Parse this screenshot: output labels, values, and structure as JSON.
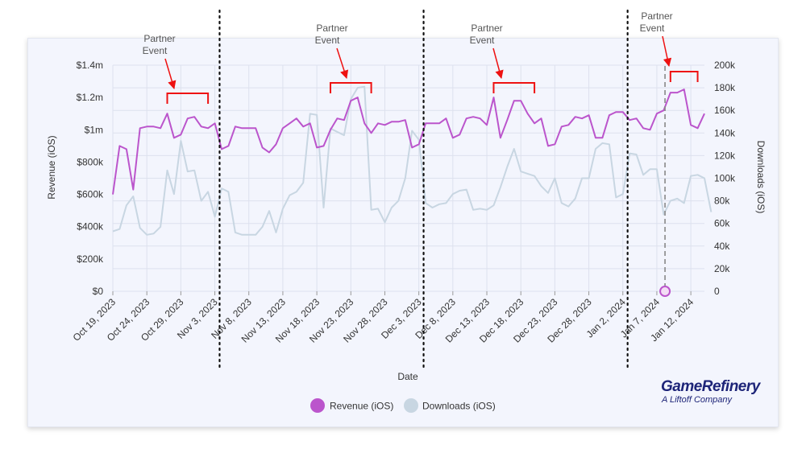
{
  "brand": {
    "name": "GameRefinery",
    "tagline": "A Liftoff Company"
  },
  "colors": {
    "revenue": "#bb55cc",
    "downloads": "#c8d6e2",
    "bracket": "#ee1111",
    "grid": "#dde1ee",
    "divider": "#111111"
  },
  "chart_data": {
    "type": "line",
    "xlabel": "Date",
    "ylabel": "Revenue (iOS)",
    "y2label": "Downloads (iOS)",
    "ylim": [
      0,
      1400000
    ],
    "y2lim": [
      0,
      200000
    ],
    "yticks": [
      "$0",
      "$200k",
      "$400k",
      "$600k",
      "$800k",
      "$1m",
      "$1.2m",
      "$1.4m"
    ],
    "y2ticks": [
      "0",
      "20k",
      "40k",
      "60k",
      "80k",
      "100k",
      "120k",
      "140k",
      "160k",
      "180k",
      "200k"
    ],
    "start_date": "2023-10-19",
    "xticks": [
      "Oct 19, 2023",
      "Oct 24, 2023",
      "Oct 29, 2023",
      "Nov 3, 2023",
      "Nov 8, 2023",
      "Nov 13, 2023",
      "Nov 18, 2023",
      "Nov 23, 2023",
      "Nov 28, 2023",
      "Dec 3, 2023",
      "Dec 8, 2023",
      "Dec 13, 2023",
      "Dec 18, 2023",
      "Dec 23, 2023",
      "Dec 28, 2023",
      "Jan 2, 2024",
      "Jan 7, 2024",
      "Jan 12, 2024"
    ],
    "grid": true,
    "legend": "bottom",
    "series": [
      {
        "name": "Revenue (iOS)",
        "axis": "left",
        "values": [
          600000,
          900000,
          880000,
          630000,
          1010000,
          1020000,
          1020000,
          1010000,
          1100000,
          950000,
          970000,
          1070000,
          1080000,
          1020000,
          1010000,
          1040000,
          880000,
          900000,
          1020000,
          1010000,
          1010000,
          1010000,
          890000,
          860000,
          910000,
          1010000,
          1040000,
          1070000,
          1020000,
          1040000,
          890000,
          900000,
          1000000,
          1070000,
          1060000,
          1180000,
          1200000,
          1040000,
          980000,
          1040000,
          1030000,
          1050000,
          1050000,
          1060000,
          890000,
          910000,
          1040000,
          1040000,
          1040000,
          1070000,
          950000,
          970000,
          1070000,
          1080000,
          1070000,
          1030000,
          1200000,
          950000,
          1060000,
          1180000,
          1180000,
          1100000,
          1040000,
          1070000,
          900000,
          910000,
          1020000,
          1030000,
          1080000,
          1070000,
          1090000,
          950000,
          950000,
          1090000,
          1110000,
          1110000,
          1060000,
          1070000,
          1010000,
          1000000,
          1100000,
          1120000,
          1230000,
          1230000,
          1250000,
          1030000,
          1010000,
          1100000
        ]
      },
      {
        "name": "Downloads (iOS)",
        "axis": "right",
        "values": [
          53000,
          55000,
          76000,
          84000,
          56000,
          50000,
          51000,
          57000,
          107000,
          86000,
          133000,
          106000,
          107000,
          80000,
          88000,
          66000,
          91000,
          88000,
          52000,
          50000,
          50000,
          50000,
          57000,
          71000,
          52000,
          73000,
          85000,
          88000,
          96000,
          157000,
          156000,
          74000,
          144000,
          141000,
          138000,
          170000,
          180000,
          181000,
          72000,
          73000,
          61000,
          74000,
          80000,
          100000,
          142000,
          134000,
          78000,
          74000,
          77000,
          78000,
          86000,
          89000,
          90000,
          72000,
          73000,
          72000,
          76000,
          92000,
          110000,
          126000,
          106000,
          104000,
          102000,
          93000,
          87000,
          100000,
          78000,
          75000,
          82000,
          100000,
          100000,
          126000,
          131000,
          130000,
          83000,
          86000,
          122000,
          121000,
          103000,
          108000,
          108000,
          68000,
          80000,
          82000,
          78000,
          102000,
          103000,
          100000,
          70000
        ]
      }
    ],
    "annotations": [
      {
        "text": [
          "Partner",
          "Event"
        ],
        "bracket": [
          "2023-10-27",
          "2023-11-02"
        ]
      },
      {
        "text": [
          "Partner",
          "Event"
        ],
        "bracket": [
          "2023-11-20",
          "2023-11-26"
        ]
      },
      {
        "text": [
          "Partner",
          "Event"
        ],
        "bracket": [
          "2023-12-14",
          "2023-12-20"
        ]
      },
      {
        "text": [
          "Partner",
          "Event"
        ],
        "bracket": [
          "2024-01-09",
          "2024-01-13"
        ]
      }
    ],
    "dividers": [
      "2023-11-04",
      "2023-12-04",
      "2024-01-03"
    ],
    "reference_line": "2024-01-08"
  }
}
